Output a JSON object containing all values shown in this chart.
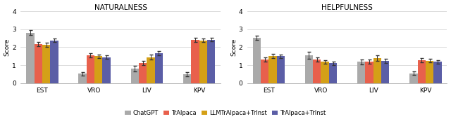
{
  "title_left": "NATURALNESS",
  "title_right": "HELPFULNESS",
  "categories": [
    "EST",
    "VRO",
    "LIV",
    "KPV"
  ],
  "models": [
    "ChatGPT",
    "TrAlpaca",
    "LLMTrAlpaca+TrInst",
    "TrAlpaca+TrInst"
  ],
  "colors": [
    "#aaaaaa",
    "#E8604C",
    "#D4A017",
    "#5B5EA6"
  ],
  "naturalness_values": [
    [
      2.82,
      0.52,
      0.8,
      0.48
    ],
    [
      2.18,
      1.55,
      1.12,
      2.42
    ],
    [
      2.12,
      1.5,
      1.45,
      2.38
    ],
    [
      2.38,
      1.45,
      1.68,
      2.42
    ]
  ],
  "naturalness_errors": [
    [
      0.13,
      0.1,
      0.15,
      0.12
    ],
    [
      0.12,
      0.12,
      0.13,
      0.12
    ],
    [
      0.12,
      0.1,
      0.12,
      0.1
    ],
    [
      0.1,
      0.1,
      0.12,
      0.1
    ]
  ],
  "helpfulness_values": [
    [
      2.52,
      1.55,
      1.18,
      0.55
    ],
    [
      1.32,
      1.3,
      1.2,
      1.28
    ],
    [
      1.5,
      1.18,
      1.4,
      1.25
    ],
    [
      1.5,
      1.1,
      1.25,
      1.18
    ]
  ],
  "helpfulness_errors": [
    [
      0.12,
      0.18,
      0.15,
      0.1
    ],
    [
      0.12,
      0.12,
      0.12,
      0.12
    ],
    [
      0.12,
      0.1,
      0.15,
      0.1
    ],
    [
      0.1,
      0.1,
      0.12,
      0.1
    ]
  ],
  "ylim": [
    0,
    4
  ],
  "yticks": [
    0,
    1,
    2,
    3,
    4
  ],
  "ylabel": "Score",
  "bar_width": 0.13,
  "background_color": "#ffffff",
  "legend_labels": [
    "ChatGPT",
    "TrAlpaca",
    "LLMTrAlpaca+TrInst",
    "TrAlpaca+TrInst"
  ],
  "figsize": [
    6.4,
    1.7
  ],
  "dpi": 100
}
